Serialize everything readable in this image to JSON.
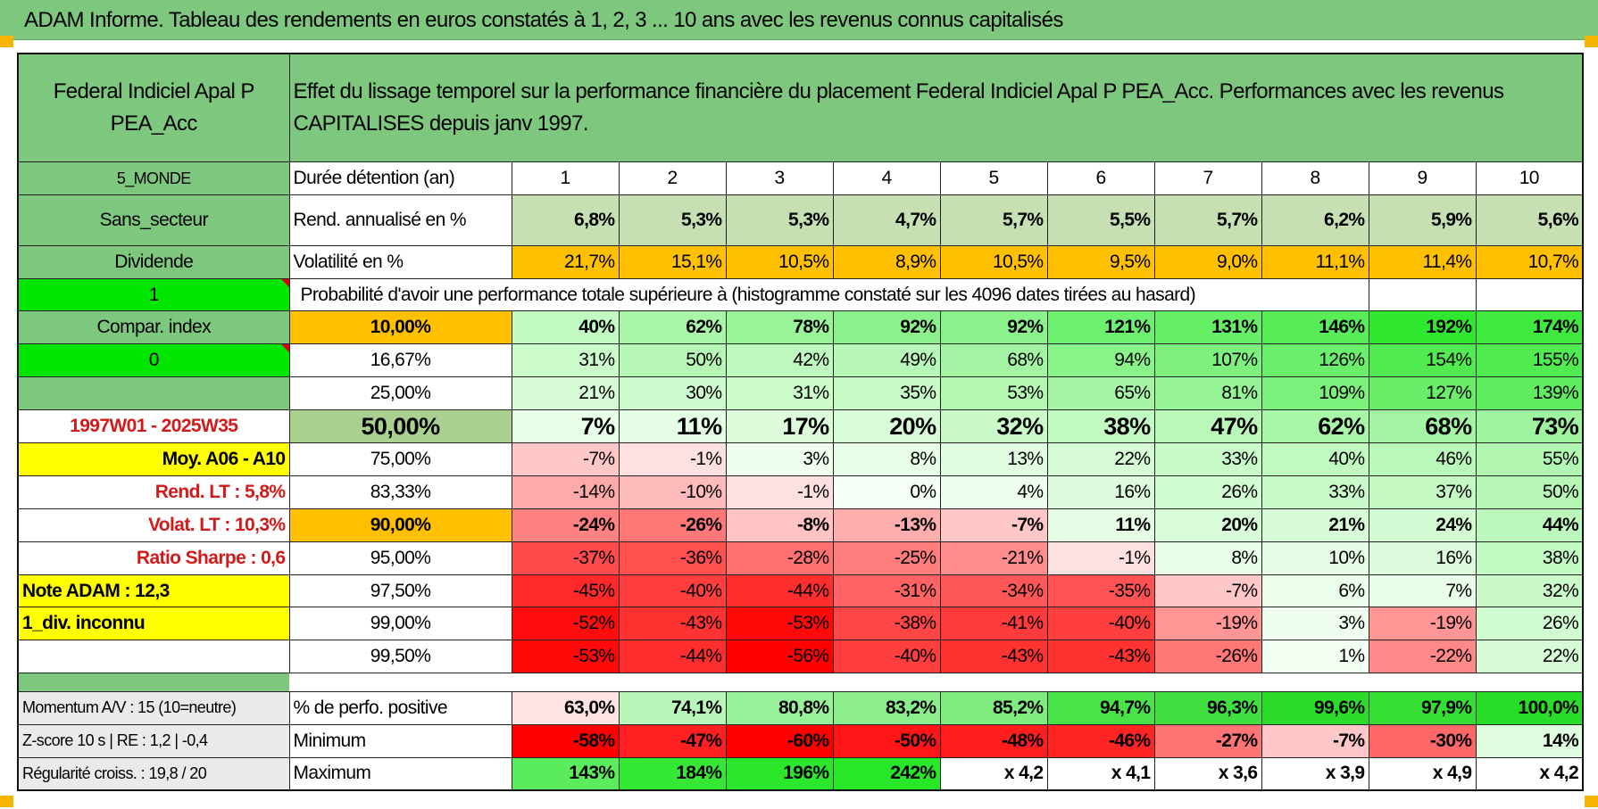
{
  "title": "ADAM Informe. Tableau des rendements en euros constatés à 1, 2, 3 ... 10 ans avec les revenus connus capitalisés",
  "fund_name": "Federal Indiciel Apal P PEA_Acc",
  "description": "Effet du lissage temporel sur la performance financière du placement Federal Indiciel Apal P PEA_Acc. Performances avec les revenus CAPITALISES depuis janv 1997.",
  "sidebar": {
    "region": "5_MONDE",
    "sector": "Sans_secteur",
    "dividend": "Dividende",
    "one": "1",
    "compar": "Compar. index",
    "zero": "0",
    "period": "1997W01 - 2025W35",
    "moy": "Moy. A06 - A10",
    "rend_lt": "Rend. LT :   5,8%",
    "volat_lt": "Volat. LT :   10,3%",
    "sharpe": "Ratio Sharpe :    0,6",
    "note": "Note ADAM : 12,3",
    "div_unknown": "1_div. inconnu",
    "momentum": "Momentum A/V : 15 (10=neutre)",
    "zscore": "Z-score 10 s | RE : 1,2 | -0,4",
    "regularite": "Régularité croiss. : 19,8 / 20"
  },
  "labels": {
    "duree": "Durée détention (an)",
    "rend": "Rend. annualisé en %",
    "volat": "Volatilité en %",
    "proba": "Probabilité d'avoir une performance totale supérieure à (histogramme constaté sur les 4096 dates tirées au hasard)",
    "perfo_pos": "% de perfo. positive",
    "minimum": "Minimum",
    "maximum": "Maximum"
  },
  "years": [
    "1",
    "2",
    "3",
    "4",
    "5",
    "6",
    "7",
    "8",
    "9",
    "10"
  ],
  "rend": [
    "6,8%",
    "5,3%",
    "5,3%",
    "4,7%",
    "5,7%",
    "5,5%",
    "5,7%",
    "6,2%",
    "5,9%",
    "5,6%"
  ],
  "volat": [
    "21,7%",
    "15,1%",
    "10,5%",
    "8,9%",
    "10,5%",
    "9,5%",
    "9,0%",
    "11,1%",
    "11,4%",
    "10,7%"
  ],
  "prob_rows": [
    {
      "p": "10,00%",
      "v": [
        "40%",
        "62%",
        "78%",
        "92%",
        "92%",
        "121%",
        "131%",
        "146%",
        "192%",
        "174%"
      ]
    },
    {
      "p": "16,67%",
      "v": [
        "31%",
        "50%",
        "42%",
        "49%",
        "68%",
        "94%",
        "107%",
        "126%",
        "154%",
        "155%"
      ]
    },
    {
      "p": "25,00%",
      "v": [
        "21%",
        "30%",
        "31%",
        "35%",
        "53%",
        "65%",
        "81%",
        "109%",
        "127%",
        "139%"
      ]
    },
    {
      "p": "50,00%",
      "v": [
        "7%",
        "11%",
        "17%",
        "20%",
        "32%",
        "38%",
        "47%",
        "62%",
        "68%",
        "73%"
      ]
    },
    {
      "p": "75,00%",
      "v": [
        "-7%",
        "-1%",
        "3%",
        "8%",
        "13%",
        "22%",
        "33%",
        "40%",
        "46%",
        "55%"
      ]
    },
    {
      "p": "83,33%",
      "v": [
        "-14%",
        "-10%",
        "-1%",
        "0%",
        "4%",
        "16%",
        "26%",
        "33%",
        "37%",
        "50%"
      ]
    },
    {
      "p": "90,00%",
      "v": [
        "-24%",
        "-26%",
        "-8%",
        "-13%",
        "-7%",
        "11%",
        "20%",
        "21%",
        "24%",
        "44%"
      ]
    },
    {
      "p": "95,00%",
      "v": [
        "-37%",
        "-36%",
        "-28%",
        "-25%",
        "-21%",
        "-1%",
        "8%",
        "10%",
        "16%",
        "38%"
      ]
    },
    {
      "p": "97,50%",
      "v": [
        "-45%",
        "-40%",
        "-44%",
        "-31%",
        "-34%",
        "-35%",
        "-7%",
        "6%",
        "7%",
        "32%"
      ]
    },
    {
      "p": "99,00%",
      "v": [
        "-52%",
        "-43%",
        "-53%",
        "-38%",
        "-41%",
        "-40%",
        "-19%",
        "3%",
        "-19%",
        "26%"
      ]
    },
    {
      "p": "99,50%",
      "v": [
        "-53%",
        "-44%",
        "-56%",
        "-40%",
        "-43%",
        "-43%",
        "-26%",
        "1%",
        "-22%",
        "22%"
      ]
    }
  ],
  "perfo_pos": [
    "63,0%",
    "74,1%",
    "80,8%",
    "83,2%",
    "85,2%",
    "94,7%",
    "96,3%",
    "99,6%",
    "97,9%",
    "100,0%"
  ],
  "minimum": [
    "-58%",
    "-47%",
    "-60%",
    "-50%",
    "-48%",
    "-46%",
    "-27%",
    "-7%",
    "-30%",
    "14%"
  ],
  "maximum": [
    "143%",
    "184%",
    "196%",
    "242%",
    "x 4,2",
    "x 4,1",
    "x 3,6",
    "x 3,9",
    "x 4,9",
    "x 4,2"
  ],
  "colors": {
    "header_green": "#7dc87e",
    "bright_green": "#00e600",
    "orange": "#ffc000",
    "yellow": "#ffff00",
    "label_red": "#d11a1a",
    "rend_fill": "#c6e0b4",
    "median_fill": "#a9d08e"
  }
}
